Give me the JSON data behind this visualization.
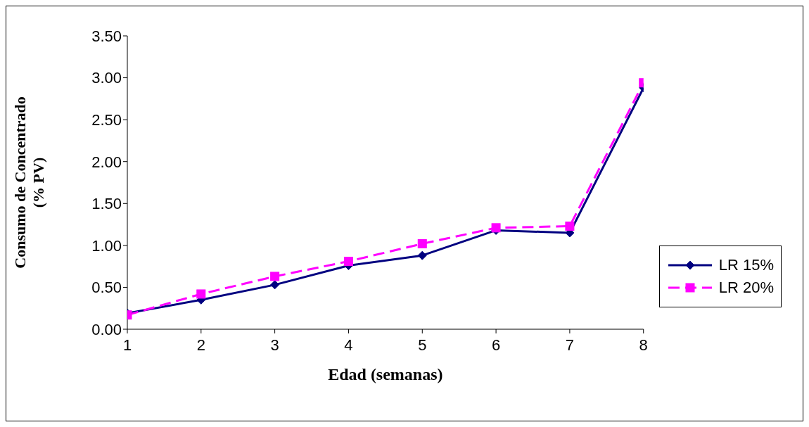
{
  "chart_data": {
    "type": "line",
    "xlabel": "Edad (semanas)",
    "ylabel": "Consumo de Concentrado\n(% PV)",
    "x": [
      1,
      2,
      3,
      4,
      5,
      6,
      7,
      8
    ],
    "series": [
      {
        "name": "LR 15%",
        "color": "#000080",
        "marker": "diamond",
        "line_style": "solid",
        "values": [
          0.19,
          0.35,
          0.53,
          0.76,
          0.88,
          1.18,
          1.15,
          2.88
        ]
      },
      {
        "name": "LR 20%",
        "color": "#ff00ff",
        "marker": "square",
        "line_style": "dashed",
        "values": [
          0.17,
          0.42,
          0.63,
          0.81,
          1.02,
          1.21,
          1.23,
          2.94
        ]
      }
    ],
    "xlim": [
      1,
      8
    ],
    "xticks": [
      1,
      2,
      3,
      4,
      5,
      6,
      7,
      8
    ],
    "ylim": [
      0,
      3.5
    ],
    "yticks": [
      {
        "value": 0,
        "label": "0.00"
      },
      {
        "value": 0.5,
        "label": "0.50"
      },
      {
        "value": 1,
        "label": "1.00"
      },
      {
        "value": 1.5,
        "label": "1.50"
      },
      {
        "value": 2,
        "label": "2.00"
      },
      {
        "value": 2.5,
        "label": "2.50"
      },
      {
        "value": 3,
        "label": "3.00"
      },
      {
        "value": 3.5,
        "label": "3.50"
      }
    ],
    "grid": false,
    "legend": "right"
  }
}
